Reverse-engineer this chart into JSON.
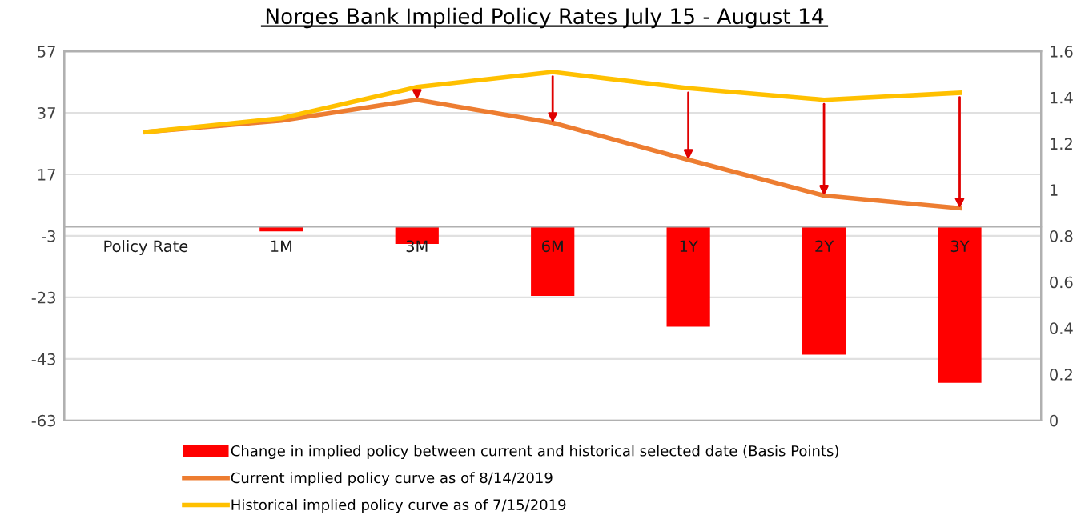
{
  "chart_data": {
    "type": "bar",
    "title": "Norges Bank Implied Policy Rates July 15 - August 14",
    "categories": [
      "Policy Rate",
      "1M",
      "3M",
      "6M",
      "1Y",
      "2Y",
      "3Y"
    ],
    "series": [
      {
        "name": "Change in implied policy between current and historical selected date (Basis Points)",
        "color": "#ff0000",
        "values": [
          null,
          -1.5,
          -5.6,
          -22.5,
          -32.5,
          -41.6,
          -50.8
        ]
      },
      {
        "name": "Current implied policy curve as of 8/14/2019",
        "type": "line",
        "axis": "y2",
        "color": "#ed7d31",
        "values": [
          1.25,
          1.3,
          1.39,
          1.29,
          1.13,
          0.975,
          0.92
        ]
      },
      {
        "name": "Historical implied policy curve as of 7/15/2019",
        "type": "line",
        "axis": "y2",
        "color": "#ffc000",
        "values": [
          1.25,
          1.31,
          1.445,
          1.51,
          1.44,
          1.39,
          1.42
        ]
      }
    ],
    "ylim": [
      -63,
      57
    ],
    "yticks": [
      -63,
      -43,
      -23,
      -3,
      17,
      37,
      57
    ],
    "y2lim": [
      0,
      1.6
    ],
    "y2ticks": [
      0,
      {
        "value": 0.2,
        "label": "0.2"
      },
      {
        "value": 0.4,
        "label": "0.4"
      },
      {
        "value": 0.6,
        "label": "0.6"
      },
      {
        "value": 0.8,
        "label": "0.8"
      },
      1,
      {
        "value": 1.2,
        "label": "1.2"
      },
      {
        "value": 1.4,
        "label": "1.4"
      },
      {
        "value": 1.6,
        "label": "1.6"
      }
    ],
    "grid": "y",
    "legend": "bottom",
    "marker": "none",
    "line_style": "solid"
  }
}
